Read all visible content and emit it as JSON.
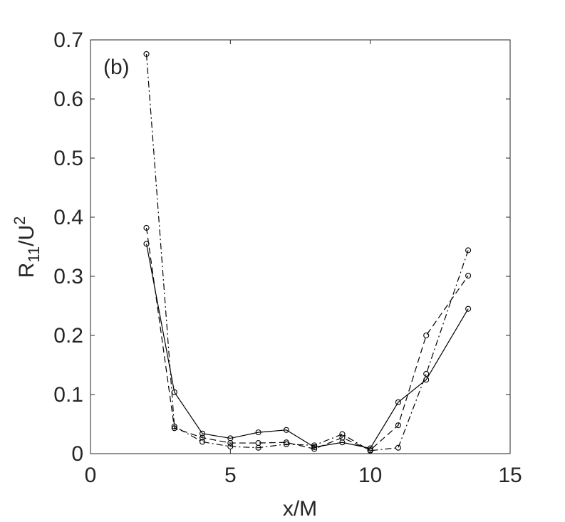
{
  "chart_data": {
    "type": "line",
    "panel_label": "(b)",
    "xlabel": "x/M",
    "ylabel": {
      "main": "R",
      "sub": "11",
      "mid": "/U",
      "sup": "2"
    },
    "xlim": [
      0,
      15
    ],
    "ylim": [
      0,
      0.7
    ],
    "xticks": [
      0,
      5,
      10,
      15
    ],
    "xtick_labels": [
      "0",
      "5",
      "10",
      "15"
    ],
    "yticks": [
      0,
      0.1,
      0.2,
      0.3,
      0.4,
      0.5,
      0.6,
      0.7
    ],
    "ytick_labels": [
      "0",
      "0.1",
      "0.2",
      "0.3",
      "0.4",
      "0.5",
      "0.6",
      "0.7"
    ],
    "grid": false,
    "legend": "none",
    "x": [
      2,
      3,
      4,
      5,
      6,
      7,
      8,
      9,
      10,
      11,
      12,
      13.5
    ],
    "series": [
      {
        "linestyle": "solid",
        "marker": "circle",
        "color": "#000000",
        "values": [
          0.355,
          0.104,
          0.034,
          0.026,
          0.036,
          0.04,
          0.011,
          0.019,
          0.009,
          0.087,
          0.125,
          0.245
        ]
      },
      {
        "linestyle": "dashed",
        "marker": "circle",
        "color": "#000000",
        "values": [
          0.382,
          0.043,
          0.027,
          0.018,
          0.018,
          0.019,
          0.008,
          0.027,
          0.006,
          0.048,
          0.2,
          0.301
        ]
      },
      {
        "linestyle": "dashdot",
        "marker": "circle",
        "color": "#000000",
        "values": [
          0.676,
          0.046,
          0.02,
          0.012,
          0.01,
          0.016,
          0.014,
          0.033,
          0.005,
          0.01,
          0.135,
          0.344
        ]
      }
    ]
  }
}
